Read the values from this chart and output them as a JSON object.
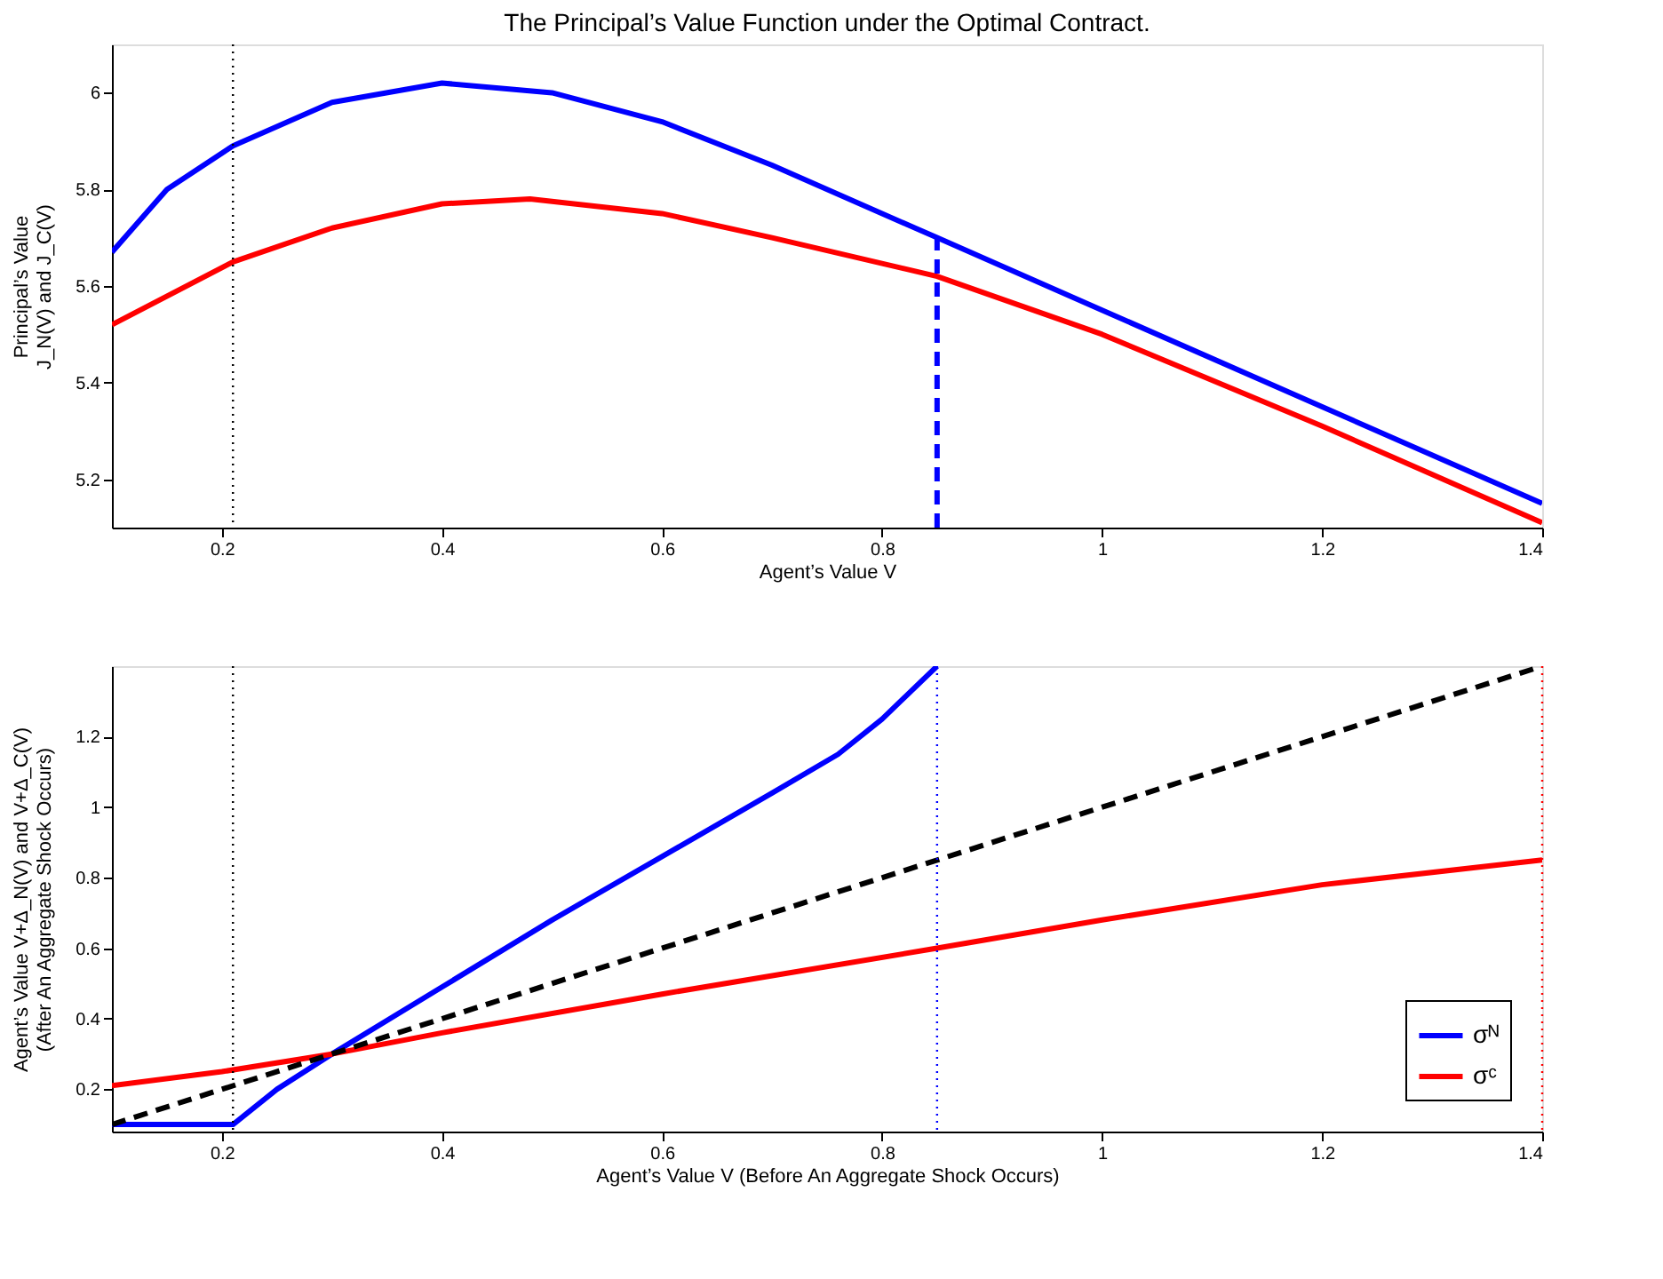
{
  "chart_data": [
    {
      "type": "line",
      "title": "The Principal’s Value Function under the Optimal Contract.",
      "xlabel": "Agent’s Value V",
      "ylabel": "Principal’s Value\nJ_N(V) and J_C(V)",
      "xlim": [
        0.1,
        1.4
      ],
      "xticks": [
        0.2,
        0.4,
        0.6,
        0.8,
        1,
        1.2,
        1.4
      ],
      "ylim": [
        5.1,
        6.1
      ],
      "yticks": [
        5.2,
        5.4,
        5.6,
        5.8,
        6
      ],
      "grid": false,
      "legend": false,
      "series": [
        {
          "color": "#0000ff",
          "line_style": "solid",
          "x": [
            0.1,
            0.15,
            0.21,
            0.3,
            0.4,
            0.5,
            0.6,
            0.7,
            0.85,
            1.0,
            1.2,
            1.4
          ],
          "values": [
            5.67,
            5.8,
            5.89,
            5.98,
            6.02,
            6.0,
            5.94,
            5.85,
            5.7,
            5.55,
            5.35,
            5.15
          ]
        },
        {
          "color": "#ff0000",
          "line_style": "solid",
          "x": [
            0.1,
            0.21,
            0.3,
            0.4,
            0.48,
            0.6,
            0.7,
            0.85,
            1.0,
            1.2,
            1.4
          ],
          "values": [
            5.52,
            5.65,
            5.72,
            5.77,
            5.78,
            5.75,
            5.7,
            5.62,
            5.5,
            5.31,
            5.11
          ]
        },
        {
          "color": "#0000ff",
          "line_style": "dashed",
          "x": [
            0.85,
            0.85
          ],
          "values": [
            5.1,
            5.7
          ]
        }
      ],
      "ref_lines": [
        {
          "axis": "x",
          "value": 0.21,
          "color": "#000000",
          "line_style": "dotted"
        }
      ]
    },
    {
      "type": "line",
      "xlabel": "Agent’s Value V (Before An Aggregate Shock Occurs)",
      "ylabel": "Agent’s Value V+Δ_N(V) and V+Δ_C(V)\n(After An Aggregate Shock Occurs)",
      "xlim": [
        0.1,
        1.4
      ],
      "xticks": [
        0.2,
        0.4,
        0.6,
        0.8,
        1,
        1.2,
        1.4
      ],
      "ylim": [
        0.08,
        1.4
      ],
      "yticks": [
        0.2,
        0.4,
        0.6,
        0.8,
        1,
        1.2
      ],
      "grid": false,
      "legend": "bottom right",
      "series": [
        {
          "name": "σᴺ",
          "color": "#0000ff",
          "line_style": "solid",
          "x": [
            0.1,
            0.21,
            0.25,
            0.3,
            0.4,
            0.5,
            0.6,
            0.7,
            0.76,
            0.8,
            0.85
          ],
          "values": [
            0.1,
            0.1,
            0.2,
            0.3,
            0.49,
            0.68,
            0.86,
            1.04,
            1.15,
            1.25,
            1.4
          ]
        },
        {
          "name": "σᶜ",
          "color": "#ff0000",
          "line_style": "solid",
          "x": [
            0.1,
            0.2,
            0.3,
            0.4,
            0.6,
            0.85,
            1.0,
            1.2,
            1.4
          ],
          "values": [
            0.21,
            0.25,
            0.3,
            0.36,
            0.47,
            0.6,
            0.68,
            0.78,
            0.85
          ]
        },
        {
          "color": "#000000",
          "line_style": "dashed",
          "x": [
            0.1,
            1.4
          ],
          "values": [
            0.1,
            1.4
          ]
        }
      ],
      "ref_lines": [
        {
          "axis": "x",
          "value": 0.21,
          "color": "#000000",
          "line_style": "dotted"
        },
        {
          "axis": "x",
          "value": 0.85,
          "color": "#0000ff",
          "line_style": "dotted"
        },
        {
          "axis": "x",
          "value": 1.4,
          "color": "#ff0000",
          "line_style": "dotted"
        }
      ]
    }
  ]
}
